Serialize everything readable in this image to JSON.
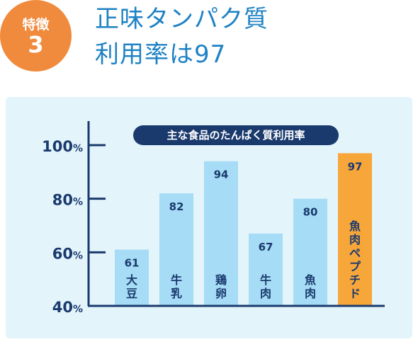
{
  "feature_badge": {
    "label": "特徴",
    "number": "3"
  },
  "headline": {
    "line1": "正味タンパク質",
    "line2": "利用率は97"
  },
  "chart_data": {
    "type": "bar",
    "title": "主な食品のたんぱく質利用率",
    "xlabel": "",
    "ylabel": "",
    "unit": "%",
    "ylim": [
      40,
      100
    ],
    "yticks": [
      40,
      60,
      80,
      100
    ],
    "categories": [
      "大豆",
      "牛乳",
      "鶏卵",
      "牛肉",
      "魚肉",
      "魚肉ペプチド"
    ],
    "values": [
      61,
      82,
      94,
      67,
      80,
      97
    ],
    "highlight": "魚肉ペプチド",
    "grid": false,
    "colors": {
      "bar": "#a6dcf5",
      "bar_highlight": "#f7a63a",
      "axis": "#1a3a6e",
      "label": "#1a3a6e",
      "title_pill": "#1a3a6e",
      "title_text": "#ffffff"
    }
  }
}
